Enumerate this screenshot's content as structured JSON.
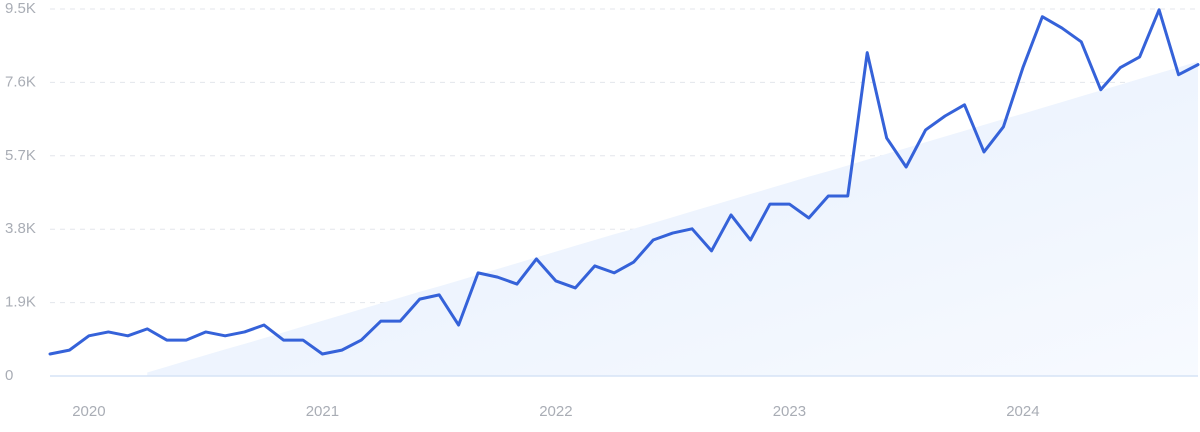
{
  "chart_data": {
    "type": "line",
    "categories": [
      null,
      null,
      "2020",
      null,
      null,
      null,
      null,
      null,
      null,
      null,
      null,
      null,
      null,
      null,
      "2021",
      null,
      null,
      null,
      null,
      null,
      null,
      null,
      null,
      null,
      null,
      null,
      "2022",
      null,
      null,
      null,
      null,
      null,
      null,
      null,
      null,
      null,
      null,
      null,
      "2023",
      null,
      null,
      null,
      null,
      null,
      null,
      null,
      null,
      null,
      null,
      null,
      "2024",
      null,
      null,
      null,
      null,
      null,
      null,
      null,
      null,
      null
    ],
    "series": [
      {
        "color": "#3562d9",
        "values": [
          570,
          670,
          1040,
          1140,
          1040,
          1220,
          930,
          930,
          1140,
          1040,
          1140,
          1320,
          930,
          930,
          570,
          670,
          930,
          1420,
          1420,
          1990,
          2100,
          1320,
          2670,
          2560,
          2380,
          3030,
          2460,
          2280,
          2850,
          2670,
          2950,
          3520,
          3700,
          3810,
          3240,
          4170,
          3520,
          4450,
          4450,
          4090,
          4660,
          4660,
          8370,
          6160,
          5410,
          6370,
          6730,
          7020,
          5800,
          6450,
          7980,
          9300,
          9010,
          8650,
          7410,
          7980,
          8260,
          9480,
          7800,
          8060
        ]
      },
      {
        "color": "#e4eefc",
        "values": [
          null,
          null,
          null,
          null,
          null,
          90,
          240,
          390,
          540,
          690,
          830,
          980,
          1130,
          1280,
          1430,
          1580,
          1730,
          1880,
          2030,
          2180,
          2320,
          2470,
          2620,
          2770,
          2920,
          3070,
          3220,
          3370,
          3520,
          3670,
          3810,
          3960,
          4110,
          4260,
          4410,
          4560,
          4710,
          4860,
          5010,
          5160,
          5300,
          5450,
          5600,
          5750,
          5900,
          6050,
          6200,
          6350,
          6500,
          6650,
          6790,
          6940,
          7090,
          7240,
          7390,
          7540,
          7690,
          7840,
          7990,
          8140
        ]
      }
    ],
    "ylim": [
      0,
      9500
    ],
    "yticks": [
      0,
      {
        "value": 1900,
        "label": "1.9K"
      },
      {
        "value": 3800,
        "label": "3.8K"
      },
      {
        "value": 5700,
        "label": "5.7K"
      },
      {
        "value": 7600,
        "label": "7.6K"
      },
      {
        "value": 9500,
        "label": "9.5K"
      }
    ],
    "grid": true
  }
}
